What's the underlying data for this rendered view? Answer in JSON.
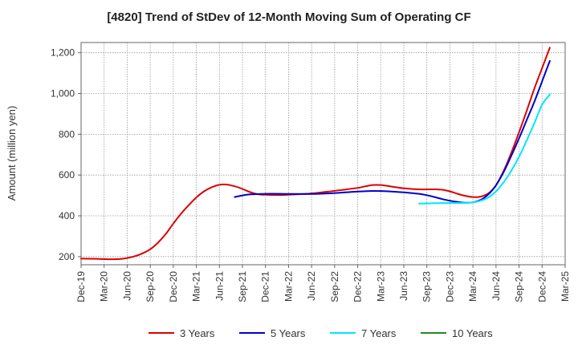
{
  "chart_data": {
    "type": "line",
    "title": "[4820]  Trend of StDev of 12-Month Moving Sum of Operating CF",
    "xlabel": "",
    "ylabel": "Amount (million yen)",
    "ylim": [
      160,
      1250
    ],
    "yticks": [
      200,
      400,
      600,
      800,
      1000,
      1200
    ],
    "ytick_labels": [
      "200",
      "400",
      "600",
      "800",
      "1,000",
      "1,200"
    ],
    "xlim": [
      0,
      63
    ],
    "xticks": [
      0,
      3,
      6,
      9,
      12,
      15,
      18,
      21,
      24,
      27,
      30,
      33,
      36,
      39,
      42,
      45,
      48,
      51,
      54,
      57,
      60,
      63
    ],
    "xtick_labels": [
      "Dec-19",
      "Mar-20",
      "Jun-20",
      "Sep-20",
      "Dec-20",
      "Mar-21",
      "Jun-21",
      "Sep-21",
      "Dec-21",
      "Mar-22",
      "Jun-22",
      "Sep-22",
      "Dec-22",
      "Mar-23",
      "Jun-23",
      "Sep-23",
      "Dec-23",
      "Mar-24",
      "Jun-24",
      "Sep-24",
      "Dec-24",
      "Mar-25"
    ],
    "grid": true,
    "legend_position": "bottom",
    "series": [
      {
        "name": "3 Years",
        "color": "#dd0000",
        "points": [
          [
            0,
            190
          ],
          [
            2,
            189
          ],
          [
            4,
            187
          ],
          [
            5,
            188
          ],
          [
            6,
            193
          ],
          [
            7,
            202
          ],
          [
            8,
            216
          ],
          [
            9,
            236
          ],
          [
            10,
            268
          ],
          [
            11,
            310
          ],
          [
            12,
            362
          ],
          [
            13,
            410
          ],
          [
            14,
            452
          ],
          [
            15,
            490
          ],
          [
            16,
            520
          ],
          [
            17,
            540
          ],
          [
            18,
            552
          ],
          [
            19,
            553
          ],
          [
            20,
            545
          ],
          [
            21,
            532
          ],
          [
            22,
            516
          ],
          [
            23,
            506
          ],
          [
            24,
            503
          ],
          [
            26,
            502
          ],
          [
            28,
            505
          ],
          [
            30,
            510
          ],
          [
            32,
            518
          ],
          [
            34,
            527
          ],
          [
            36,
            537
          ],
          [
            37,
            545
          ],
          [
            38,
            551
          ],
          [
            39,
            551
          ],
          [
            40,
            546
          ],
          [
            41,
            540
          ],
          [
            42,
            535
          ],
          [
            44,
            530
          ],
          [
            46,
            530
          ],
          [
            47,
            528
          ],
          [
            48,
            520
          ],
          [
            49,
            508
          ],
          [
            50,
            498
          ],
          [
            51,
            492
          ],
          [
            52,
            494
          ],
          [
            53,
            510
          ],
          [
            54,
            550
          ],
          [
            55,
            620
          ],
          [
            56,
            710
          ],
          [
            57,
            810
          ],
          [
            58,
            915
          ],
          [
            59,
            1025
          ],
          [
            60,
            1125
          ],
          [
            61,
            1225
          ]
        ]
      },
      {
        "name": "5 Years",
        "color": "#0000cc",
        "points": [
          [
            20,
            492
          ],
          [
            21,
            500
          ],
          [
            22,
            505
          ],
          [
            24,
            508
          ],
          [
            26,
            508
          ],
          [
            28,
            507
          ],
          [
            30,
            507
          ],
          [
            32,
            510
          ],
          [
            34,
            514
          ],
          [
            36,
            519
          ],
          [
            38,
            522
          ],
          [
            40,
            520
          ],
          [
            42,
            515
          ],
          [
            44,
            508
          ],
          [
            45,
            501
          ],
          [
            46,
            492
          ],
          [
            47,
            482
          ],
          [
            48,
            474
          ],
          [
            49,
            468
          ],
          [
            50,
            464
          ],
          [
            51,
            466
          ],
          [
            52,
            478
          ],
          [
            53,
            505
          ],
          [
            54,
            550
          ],
          [
            55,
            615
          ],
          [
            56,
            695
          ],
          [
            57,
            780
          ],
          [
            58,
            870
          ],
          [
            59,
            960
          ],
          [
            60,
            1060
          ],
          [
            61,
            1160
          ]
        ]
      },
      {
        "name": "7 Years",
        "color": "#00e5ff",
        "points": [
          [
            44,
            460
          ],
          [
            46,
            462
          ],
          [
            48,
            463
          ],
          [
            50,
            463
          ],
          [
            51,
            466
          ],
          [
            52,
            474
          ],
          [
            53,
            490
          ],
          [
            54,
            520
          ],
          [
            55,
            565
          ],
          [
            56,
            622
          ],
          [
            57,
            690
          ],
          [
            58,
            770
          ],
          [
            59,
            855
          ],
          [
            60,
            945
          ],
          [
            61,
            995
          ]
        ]
      },
      {
        "name": "10 Years",
        "color": "#228b22",
        "points": []
      }
    ]
  }
}
